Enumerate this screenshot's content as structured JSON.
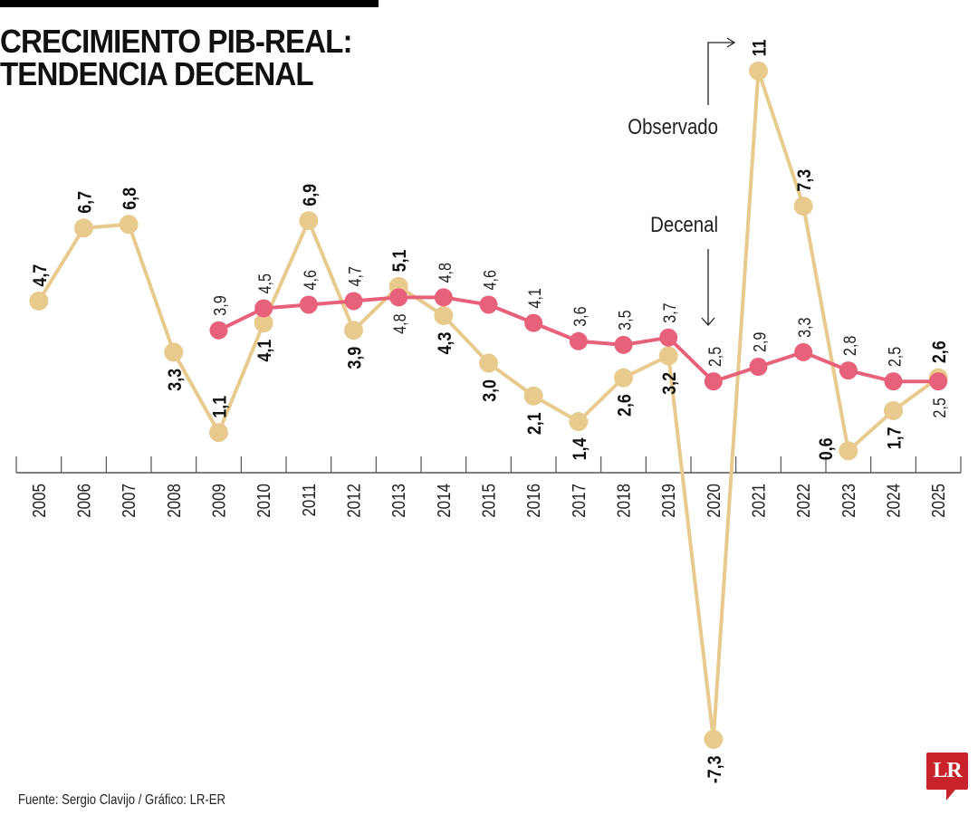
{
  "header": {
    "title_line1": "CRECIMIENTO PIB-REAL:",
    "title_line2": "TENDENCIA DECENAL"
  },
  "footer": {
    "source": "Fuente: Sergio Clavijo / Gráfico: LR-ER",
    "logo_text": "LR"
  },
  "colors": {
    "observado": "#E8CA8E",
    "decenal": "#E8617A",
    "logo": "#C8222B"
  },
  "chart_data": {
    "type": "line",
    "title": "CRECIMIENTO PIB-REAL: TENDENCIA DECENAL",
    "xlabel": "",
    "ylabel": "",
    "x": [
      "2005",
      "2006",
      "2007",
      "2008",
      "2009",
      "2010",
      "2011",
      "2012",
      "2013",
      "2014",
      "2015",
      "2016",
      "2017",
      "2018",
      "2019",
      "2020",
      "2021",
      "2022",
      "2023",
      "2024",
      "2025"
    ],
    "ylim": [
      -7.3,
      11
    ],
    "grid": false,
    "legend": "inline annotations",
    "series": [
      {
        "name": "Observado",
        "values": [
          4.7,
          6.7,
          6.8,
          3.3,
          1.1,
          4.1,
          6.9,
          3.9,
          5.1,
          4.3,
          3.0,
          2.1,
          1.4,
          2.6,
          3.2,
          -7.3,
          11,
          7.3,
          0.6,
          1.7,
          2.6
        ],
        "labels": [
          "4,7",
          "6,7",
          "6,8",
          "3,3",
          "1,1",
          "4,1",
          "6,9",
          "3,9",
          "5,1",
          "4,3",
          "3,0",
          "2,1",
          "1,4",
          "2,6",
          "3,2",
          "-7,3",
          "11",
          "7,3",
          "0,6",
          "1,7",
          "2,6"
        ],
        "label_pos": [
          "above",
          "above",
          "above",
          "below",
          "above",
          "below",
          "above",
          "below",
          "above",
          "below",
          "below",
          "below",
          "below",
          "below",
          "below",
          "below",
          "above",
          "above",
          "left",
          "below",
          "above"
        ]
      },
      {
        "name": "Decenal",
        "values": [
          null,
          null,
          null,
          null,
          3.9,
          4.5,
          4.6,
          4.7,
          4.8,
          4.8,
          4.6,
          4.1,
          3.6,
          3.5,
          3.7,
          2.5,
          2.9,
          3.3,
          2.8,
          2.5,
          2.5
        ],
        "labels": [
          null,
          null,
          null,
          null,
          "3,9",
          "4,5",
          "4,6",
          "4,7",
          "4,8",
          "4,8",
          "4,6",
          "4,1",
          "3,6",
          "3,5",
          "3,7",
          "2,5",
          "2,9",
          "3,3",
          "2,8",
          "2,5",
          "2,5"
        ],
        "label_pos": [
          null,
          null,
          null,
          null,
          "above",
          "above",
          "above",
          "above",
          "below",
          "above",
          "above",
          "above",
          "above",
          "above",
          "above",
          "above",
          "above",
          "above",
          "above",
          "above",
          "below"
        ]
      }
    ],
    "annotations": [
      {
        "text": "Observado",
        "target": "2021",
        "series": "Observado"
      },
      {
        "text": "Decenal",
        "target": "2020",
        "series": "Decenal"
      }
    ]
  }
}
